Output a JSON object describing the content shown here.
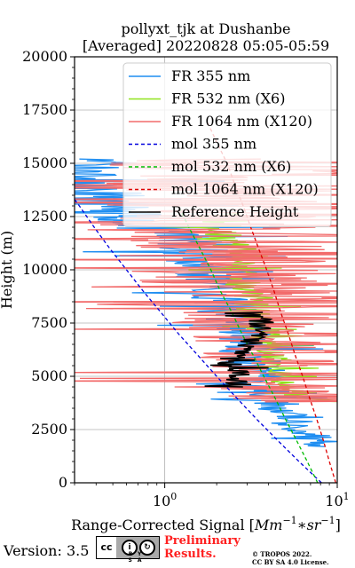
{
  "chart_data": {
    "type": "line",
    "title": "pollyxt_tjk at Dushanbe",
    "subtitle": "[Averaged] 20220828 05:05-05:59",
    "xlabel": "Range-Corrected Signal [",
    "xlabel_math": "Mm",
    "xlabel_exp1": "−1",
    "xlabel_mid": "∗sr",
    "xlabel_exp2": "−1",
    "xlabel_end": "]",
    "ylabel": "Height (m)",
    "xscale": "log",
    "xlim": [
      0.3,
      10
    ],
    "ylim": [
      0,
      20000
    ],
    "xticks": [
      {
        "value": 1,
        "base": "10",
        "exp": "0"
      },
      {
        "value": 10,
        "base": "10",
        "exp": "1"
      }
    ],
    "yticks": [
      0,
      2500,
      5000,
      7500,
      10000,
      12500,
      15000,
      17500,
      20000
    ],
    "grid": true,
    "legend_position": "top-right",
    "series": [
      {
        "name": "FR 355 nm",
        "color": "#1f8ef1",
        "style": "solid",
        "noise": 0.1,
        "points": [
          [
            8.5,
            1700
          ],
          [
            5.5,
            2800
          ],
          [
            4.6,
            3700
          ],
          [
            3.8,
            4600
          ],
          [
            3.5,
            5200
          ],
          [
            3.2,
            5900
          ],
          [
            3.0,
            6600
          ],
          [
            2.8,
            7200
          ],
          [
            2.5,
            7900
          ],
          [
            2.3,
            8600
          ],
          [
            2.1,
            9200
          ],
          [
            1.9,
            9800
          ],
          [
            1.7,
            10500
          ],
          [
            1.6,
            11000
          ],
          [
            1.3,
            11300
          ],
          [
            1.0,
            11800
          ],
          [
            0.75,
            12200
          ],
          [
            0.55,
            12700
          ],
          [
            0.4,
            13400
          ],
          [
            0.32,
            15200
          ]
        ]
      },
      {
        "name": "FR 532 nm (X6)",
        "color": "#8fe31c",
        "style": "solid",
        "noise": 0.05,
        "points": [
          [
            9.8,
            3800
          ],
          [
            6.0,
            4000
          ],
          [
            5.0,
            4600
          ],
          [
            4.6,
            5300
          ],
          [
            4.2,
            6000
          ],
          [
            3.9,
            6700
          ],
          [
            3.6,
            7400
          ],
          [
            3.3,
            8100
          ],
          [
            3.0,
            8800
          ],
          [
            2.8,
            9500
          ],
          [
            2.6,
            10200
          ],
          [
            2.4,
            10900
          ],
          [
            2.3,
            11500
          ],
          [
            2.1,
            12100
          ],
          [
            2.0,
            12700
          ]
        ]
      },
      {
        "name": "FR 1064 nm (X120)",
        "color": "#f26b6b",
        "style": "solid",
        "noise": 0.3,
        "points": [
          [
            10.0,
            3800
          ],
          [
            6.5,
            4000
          ],
          [
            5.5,
            4300
          ],
          [
            5.0,
            4900
          ],
          [
            4.6,
            5500
          ],
          [
            4.2,
            6200
          ],
          [
            3.9,
            6900
          ],
          [
            3.6,
            7600
          ],
          [
            3.3,
            8300
          ],
          [
            3.0,
            9000
          ],
          [
            2.8,
            9700
          ],
          [
            2.6,
            10400
          ],
          [
            2.5,
            11100
          ],
          [
            2.4,
            11800
          ],
          [
            2.4,
            12500
          ],
          [
            2.5,
            13200
          ],
          [
            2.8,
            13900
          ],
          [
            3.2,
            14600
          ],
          [
            3.6,
            15200
          ]
        ]
      },
      {
        "name": "mol 355 nm",
        "color": "#0000dd",
        "style": "dashed",
        "noise": 0,
        "points": [
          [
            8.1,
            0
          ],
          [
            6.0,
            1000
          ],
          [
            4.5,
            2000
          ],
          [
            3.4,
            3000
          ],
          [
            2.6,
            4000
          ],
          [
            2.0,
            5000
          ],
          [
            1.55,
            6000
          ],
          [
            1.2,
            7000
          ],
          [
            0.95,
            8000
          ],
          [
            0.75,
            9000
          ],
          [
            0.6,
            10000
          ],
          [
            0.48,
            11000
          ],
          [
            0.39,
            12000
          ],
          [
            0.32,
            13000
          ],
          [
            0.26,
            14000
          ]
        ]
      },
      {
        "name": "mol 532 nm (X6)",
        "color": "#00bb00",
        "style": "dashed",
        "noise": 0,
        "points": [
          [
            7.7,
            0
          ],
          [
            6.7,
            1000
          ],
          [
            5.8,
            2000
          ],
          [
            5.0,
            3000
          ],
          [
            4.35,
            4000
          ],
          [
            3.75,
            5000
          ],
          [
            3.25,
            6000
          ],
          [
            2.8,
            7000
          ],
          [
            2.45,
            8000
          ],
          [
            2.1,
            9000
          ],
          [
            1.85,
            10000
          ],
          [
            1.6,
            11000
          ],
          [
            1.38,
            12000
          ],
          [
            1.2,
            13000
          ]
        ]
      },
      {
        "name": "mol 1064 nm (X120)",
        "color": "#dd0000",
        "style": "dashed",
        "noise": 0,
        "points": [
          [
            9.8,
            0
          ],
          [
            9.0,
            1000
          ],
          [
            8.3,
            2000
          ],
          [
            7.6,
            3000
          ],
          [
            6.9,
            4000
          ],
          [
            6.3,
            5000
          ],
          [
            5.7,
            6000
          ],
          [
            5.2,
            7000
          ],
          [
            4.7,
            8000
          ],
          [
            4.3,
            9000
          ],
          [
            3.9,
            10000
          ],
          [
            3.5,
            11000
          ],
          [
            3.15,
            12000
          ],
          [
            2.85,
            13000
          ],
          [
            2.55,
            14000
          ],
          [
            2.3,
            15000
          ],
          [
            2.0,
            16000
          ],
          [
            1.75,
            17000
          ]
        ]
      },
      {
        "name": "Reference Height",
        "color": "#000000",
        "style": "solid",
        "noise": 0.04,
        "points": [
          [
            2.5,
            4500
          ],
          [
            2.7,
            5000
          ],
          [
            2.4,
            5800
          ],
          [
            2.9,
            6200
          ],
          [
            3.3,
            6800
          ],
          [
            3.6,
            7400
          ],
          [
            3.7,
            8000
          ]
        ]
      }
    ]
  },
  "footer": {
    "version": "Version: 3.5",
    "cc_label": "cc",
    "cc_by": "BY",
    "cc_sa": "SA",
    "preliminary_line1": "Preliminary",
    "preliminary_line2": "Results.",
    "copyright_line1": "© TROPOS 2022.",
    "copyright_line2": "CC BY SA 4.0 License."
  }
}
